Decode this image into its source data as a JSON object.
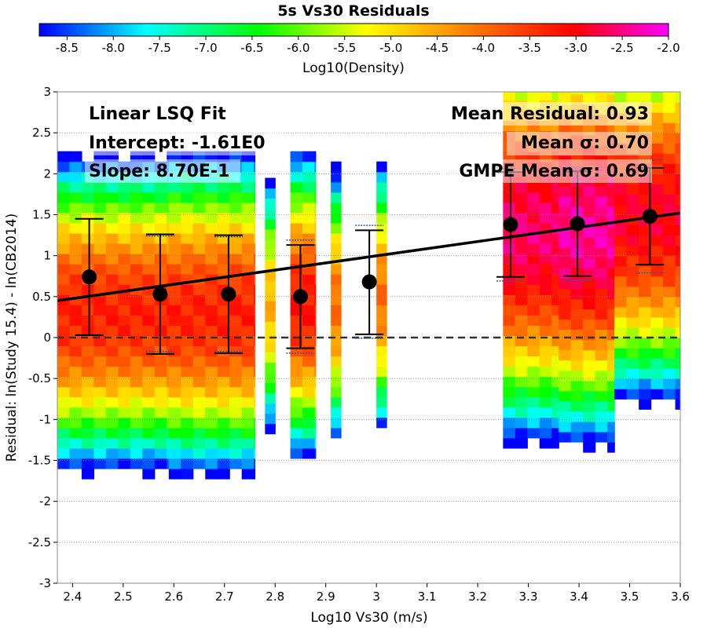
{
  "chart_data": {
    "type": "heatmap",
    "title": "5s Vs30 Residuals",
    "xlabel": "Log10 Vs30 (m/s)",
    "ylabel": "Residual: ln(Study 15.4) - ln(CB2014)",
    "xlim": [
      2.37,
      3.6
    ],
    "ylim": [
      -3,
      3
    ],
    "x_ticks": [
      "2.4",
      "2.5",
      "2.6",
      "2.7",
      "2.8",
      "2.9",
      "3",
      "3.1",
      "3.2",
      "3.3",
      "3.4",
      "3.5",
      "3.6"
    ],
    "y_ticks": [
      "3",
      "2.5",
      "2",
      "1.5",
      "1",
      "0.5",
      "0",
      "-0.5",
      "-1",
      "-1.5",
      "-2",
      "-2.5",
      "-3"
    ],
    "grid": "horizontal dotted",
    "colorbar": {
      "label": "Log10(Density)",
      "range": [
        -8.8,
        -2.0
      ],
      "ticks": [
        "-8.5",
        "-8.0",
        "-7.5",
        "-7.0",
        "-6.5",
        "-6.0",
        "-5.5",
        "-5.0",
        "-4.5",
        "-4.0",
        "-3.5",
        "-3.0",
        "-2.5",
        "-2.0"
      ],
      "placement": "top"
    },
    "density_columns": [
      {
        "x0": 2.37,
        "x1": 2.59,
        "ymin": -2.85,
        "ymax": 2.9,
        "peak": 0.3,
        "core": -3.3,
        "fall": 1.75
      },
      {
        "x0": 2.59,
        "x1": 2.76,
        "ymin": -2.85,
        "ymax": 2.9,
        "peak": 0.3,
        "core": -3.3,
        "fall": 1.8
      },
      {
        "x0": 2.78,
        "x1": 2.8,
        "ymin": -2.8,
        "ymax": 3.0,
        "peak": 0.4,
        "core": -4.6,
        "fall": 1.6
      },
      {
        "x0": 2.83,
        "x1": 2.88,
        "ymin": -2.85,
        "ymax": 3.0,
        "peak": 0.4,
        "core": -3.2,
        "fall": 1.7
      },
      {
        "x0": 2.91,
        "x1": 2.93,
        "ymin": -2.6,
        "ymax": 3.0,
        "peak": 0.4,
        "core": -4.0,
        "fall": 1.6
      },
      {
        "x0": 3.0,
        "x1": 3.02,
        "ymin": -2.1,
        "ymax": 3.0,
        "peak": 0.5,
        "core": -4.0,
        "fall": 1.6
      },
      {
        "x0": 3.25,
        "x1": 3.36,
        "ymin": -2.1,
        "ymax": 3.0,
        "peak": 1.3,
        "core": -2.6,
        "fall": 2.2
      },
      {
        "x0": 3.36,
        "x1": 3.47,
        "ymin": -1.9,
        "ymax": 3.0,
        "peak": 1.3,
        "core": -2.4,
        "fall": 2.2
      },
      {
        "x0": 3.47,
        "x1": 3.6,
        "ymin": -1.5,
        "ymax": 3.0,
        "peak": 1.5,
        "core": -2.9,
        "fall": 2.0
      }
    ],
    "fit_line": {
      "x": [
        2.37,
        3.6
      ],
      "y": [
        0.45,
        1.52
      ]
    },
    "reference_line": {
      "y": 0,
      "style": "dashed"
    },
    "points": [
      {
        "x": 2.433,
        "y": 0.74,
        "lo": 0.03,
        "hi": 1.45,
        "gmpe_lo": 0.03,
        "gmpe_hi": 1.45
      },
      {
        "x": 2.573,
        "y": 0.53,
        "lo": -0.2,
        "hi": 1.26,
        "gmpe_lo": -0.17,
        "gmpe_hi": 1.24
      },
      {
        "x": 2.708,
        "y": 0.53,
        "lo": -0.19,
        "hi": 1.25,
        "gmpe_lo": -0.17,
        "gmpe_hi": 1.23
      },
      {
        "x": 2.85,
        "y": 0.5,
        "lo": -0.13,
        "hi": 1.13,
        "gmpe_lo": -0.19,
        "gmpe_hi": 1.19
      },
      {
        "x": 2.986,
        "y": 0.68,
        "lo": 0.04,
        "hi": 1.31,
        "gmpe_lo": -0.01,
        "gmpe_hi": 1.37
      },
      {
        "x": 3.265,
        "y": 1.38,
        "lo": 0.74,
        "hi": 2.02,
        "gmpe_lo": 0.69,
        "gmpe_hi": 2.07
      },
      {
        "x": 3.397,
        "y": 1.39,
        "lo": 0.75,
        "hi": 2.03,
        "gmpe_lo": 0.7,
        "gmpe_hi": 2.08
      },
      {
        "x": 3.54,
        "y": 1.48,
        "lo": 0.89,
        "hi": 2.07,
        "gmpe_lo": 0.79,
        "gmpe_hi": 2.17
      }
    ],
    "annotations_left": [
      "Linear LSQ Fit",
      "Intercept: -1.61E0",
      "Slope: 8.70E-1"
    ],
    "annotations_right": [
      "Mean Residual: 0.93",
      "Mean σ: 0.70",
      "GMPE Mean σ: 0.69"
    ]
  }
}
